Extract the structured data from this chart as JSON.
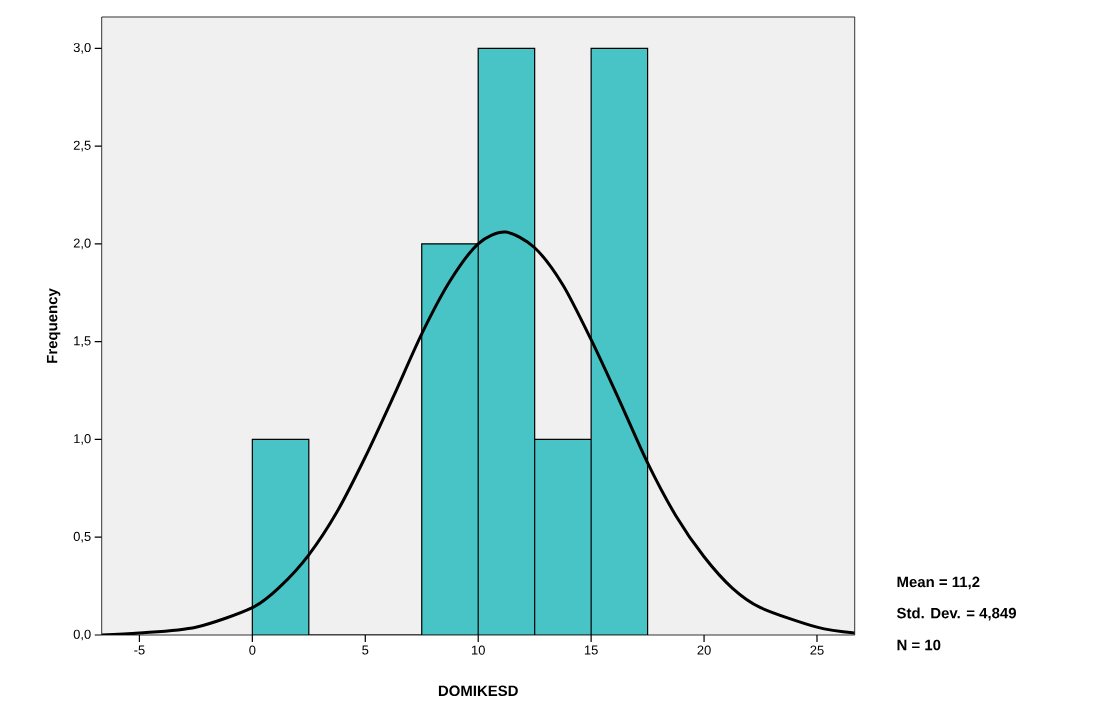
{
  "chart_data": {
    "type": "histogram",
    "xlabel": "DOMIKESD",
    "ylabel": "Frequency",
    "bins": [
      0,
      2.5,
      5,
      7.5,
      10,
      12.5,
      15,
      17.5
    ],
    "values": [
      1,
      0,
      0,
      2,
      3,
      1,
      3
    ],
    "color": "#48c3c6",
    "series": [
      {
        "type": "line",
        "color": "#000000",
        "x": [
          -6.67,
          -5,
          -2.5,
          0,
          1.25,
          2.5,
          3.75,
          5,
          6.25,
          7.5,
          8.75,
          10,
          11.2,
          12.5,
          13.75,
          15,
          16.25,
          17.5,
          18.75,
          20,
          21.25,
          22.5,
          25,
          26.67
        ],
        "values": [
          0.0,
          0.01,
          0.04,
          0.14,
          0.25,
          0.41,
          0.63,
          0.91,
          1.22,
          1.54,
          1.81,
          2.0,
          2.06,
          1.98,
          1.79,
          1.51,
          1.2,
          0.88,
          0.61,
          0.4,
          0.24,
          0.14,
          0.04,
          0.01
        ]
      }
    ],
    "xlim": [
      -6.67,
      26.67
    ],
    "ylim": [
      0,
      3.16
    ],
    "xticks": [
      -5,
      0,
      5,
      10,
      15,
      20,
      25
    ],
    "yticks": [
      {
        "value": 0,
        "label": "0,0"
      },
      {
        "value": 0.5,
        "label": "0,5"
      },
      {
        "value": 1,
        "label": "1,0"
      },
      {
        "value": 1.5,
        "label": "1,5"
      },
      {
        "value": 2,
        "label": "2,0"
      },
      {
        "value": 2.5,
        "label": "2,5"
      },
      {
        "value": 3,
        "label": "3,0"
      }
    ],
    "annotations": [
      "Mean = 11,2",
      "Std. Dev. = 4,849",
      "N = 10"
    ],
    "grid": false
  }
}
